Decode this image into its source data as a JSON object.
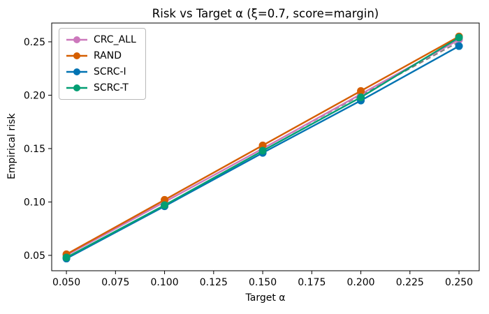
{
  "chart_data": {
    "type": "line",
    "title": "Risk vs Target α (ξ=0.7, score=margin)",
    "xlabel": "Target α",
    "ylabel": "Empirical risk",
    "x": [
      0.05,
      0.1,
      0.15,
      0.2,
      0.25
    ],
    "series": [
      {
        "name": "CRC_ALL",
        "color": "#CC78BC",
        "marker": "circle",
        "values": [
          0.05,
          0.1,
          0.15,
          0.201,
          0.252
        ]
      },
      {
        "name": "RAND",
        "color": "#D55E00",
        "marker": "circle",
        "values": [
          0.051,
          0.102,
          0.153,
          0.204,
          0.255
        ]
      },
      {
        "name": "SCRC-I",
        "color": "#0173B2",
        "marker": "circle",
        "values": [
          0.047,
          0.096,
          0.146,
          0.195,
          0.246
        ]
      },
      {
        "name": "SCRC-T",
        "color": "#029E73",
        "marker": "circle",
        "values": [
          0.048,
          0.097,
          0.148,
          0.198,
          0.254
        ]
      }
    ],
    "reference_line": {
      "meaning": "y = α diagonal",
      "style": "dashed",
      "color": "#7F7F7F",
      "x": [
        0.05,
        0.25
      ],
      "y": [
        0.05,
        0.25
      ]
    },
    "xticks": {
      "values": [
        0.05,
        0.075,
        0.1,
        0.125,
        0.15,
        0.175,
        0.2,
        0.225,
        0.25
      ],
      "labels": [
        "0.050",
        "0.075",
        "0.100",
        "0.125",
        "0.150",
        "0.175",
        "0.200",
        "0.225",
        "0.250"
      ]
    },
    "yticks": {
      "values": [
        0.05,
        0.1,
        0.15,
        0.2,
        0.25
      ],
      "labels": [
        "0.05",
        "0.10",
        "0.15",
        "0.20",
        "0.25"
      ]
    },
    "xlim": [
      0.0425,
      0.2603
    ],
    "ylim": [
      0.0356,
      0.2676
    ],
    "grid": false,
    "legend": {
      "position": "upper-left",
      "entries": [
        "CRC_ALL",
        "RAND",
        "SCRC-I",
        "SCRC-T"
      ]
    }
  }
}
